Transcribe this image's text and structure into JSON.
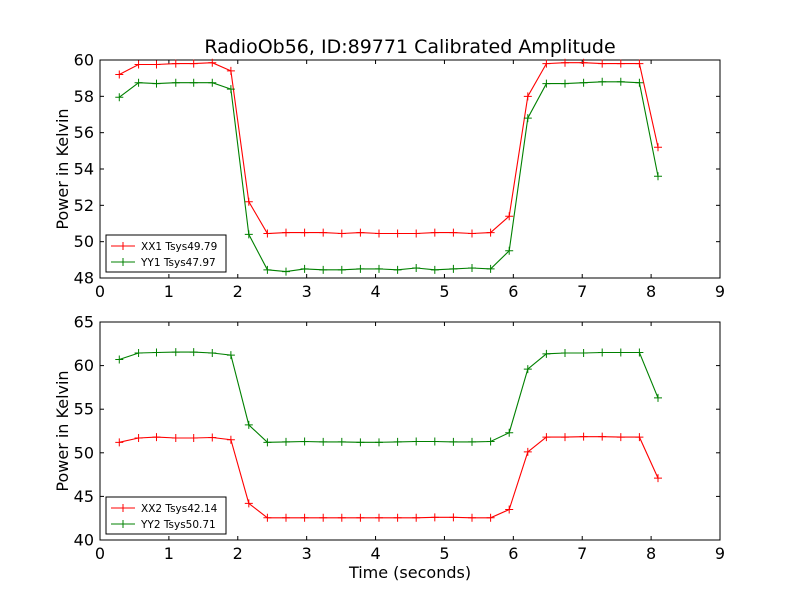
{
  "chart_data": {
    "type": "line",
    "title": "RadioOb56, ID:89771 Calibrated Amplitude",
    "xlabel": "Time (seconds)",
    "panels": [
      {
        "ylabel": "Power in Kelvin",
        "xlim": [
          0,
          9
        ],
        "ylim": [
          48,
          60
        ],
        "xticks": [
          "0",
          "1",
          "2",
          "3",
          "4",
          "5",
          "6",
          "7",
          "8",
          "9"
        ],
        "yticks": [
          "48",
          "50",
          "52",
          "54",
          "56",
          "58",
          "60"
        ],
        "legend_position": "lower-left",
        "series": [
          {
            "name": "XX1 Tsys49.79",
            "color": "#ff0000",
            "marker": "+",
            "x": [
              0.28,
              0.56,
              0.82,
              1.1,
              1.36,
              1.63,
              1.9,
              2.16,
              2.43,
              2.7,
              2.97,
              3.24,
              3.51,
              3.78,
              4.05,
              4.32,
              4.59,
              4.86,
              5.13,
              5.4,
              5.67,
              5.94,
              6.21,
              6.48,
              6.75,
              7.02,
              7.29,
              7.56,
              7.83,
              8.1
            ],
            "y": [
              59.2,
              59.75,
              59.75,
              59.8,
              59.8,
              59.85,
              59.4,
              52.2,
              50.45,
              50.5,
              50.5,
              50.5,
              50.45,
              50.5,
              50.45,
              50.45,
              50.45,
              50.5,
              50.5,
              50.45,
              50.5,
              51.4,
              58.0,
              59.8,
              59.85,
              59.85,
              59.8,
              59.8,
              59.8,
              55.2
            ]
          },
          {
            "name": "YY1 Tsys47.97",
            "color": "#008000",
            "marker": "+",
            "x": [
              0.28,
              0.56,
              0.82,
              1.1,
              1.36,
              1.63,
              1.9,
              2.16,
              2.43,
              2.7,
              2.97,
              3.24,
              3.51,
              3.78,
              4.05,
              4.32,
              4.59,
              4.86,
              5.13,
              5.4,
              5.67,
              5.94,
              6.21,
              6.48,
              6.75,
              7.02,
              7.29,
              7.56,
              7.83,
              8.1
            ],
            "y": [
              57.95,
              58.75,
              58.7,
              58.75,
              58.75,
              58.75,
              58.4,
              50.4,
              48.45,
              48.35,
              48.5,
              48.45,
              48.45,
              48.5,
              48.5,
              48.45,
              48.55,
              48.45,
              48.5,
              48.55,
              48.5,
              49.5,
              56.8,
              58.7,
              58.7,
              58.75,
              58.8,
              58.8,
              58.75,
              53.6
            ]
          }
        ]
      },
      {
        "ylabel": "Power in Kelvin",
        "xlim": [
          0,
          9
        ],
        "ylim": [
          40,
          65
        ],
        "xticks": [
          "0",
          "1",
          "2",
          "3",
          "4",
          "5",
          "6",
          "7",
          "8",
          "9"
        ],
        "yticks": [
          "40",
          "45",
          "50",
          "55",
          "60",
          "65"
        ],
        "legend_position": "lower-left",
        "series": [
          {
            "name": "XX2 Tsys42.14",
            "color": "#ff0000",
            "marker": "+",
            "x": [
              0.28,
              0.56,
              0.82,
              1.1,
              1.36,
              1.63,
              1.9,
              2.16,
              2.43,
              2.7,
              2.97,
              3.24,
              3.51,
              3.78,
              4.05,
              4.32,
              4.59,
              4.86,
              5.13,
              5.4,
              5.67,
              5.94,
              6.21,
              6.48,
              6.75,
              7.02,
              7.29,
              7.56,
              7.83,
              8.1
            ],
            "y": [
              51.2,
              51.7,
              51.8,
              51.7,
              51.7,
              51.75,
              51.5,
              44.2,
              42.55,
              42.55,
              42.55,
              42.55,
              42.55,
              42.55,
              42.55,
              42.55,
              42.55,
              42.6,
              42.6,
              42.55,
              42.55,
              43.5,
              50.1,
              51.8,
              51.8,
              51.85,
              51.85,
              51.8,
              51.8,
              47.1
            ]
          },
          {
            "name": "YY2 Tsys50.71",
            "color": "#008000",
            "marker": "+",
            "x": [
              0.28,
              0.56,
              0.82,
              1.1,
              1.36,
              1.63,
              1.9,
              2.16,
              2.43,
              2.7,
              2.97,
              3.24,
              3.51,
              3.78,
              4.05,
              4.32,
              4.59,
              4.86,
              5.13,
              5.4,
              5.67,
              5.94,
              6.21,
              6.48,
              6.75,
              7.02,
              7.29,
              7.56,
              7.83,
              8.1
            ],
            "y": [
              60.7,
              61.45,
              61.5,
              61.55,
              61.55,
              61.45,
              61.2,
              53.2,
              51.2,
              51.25,
              51.3,
              51.25,
              51.25,
              51.2,
              51.2,
              51.25,
              51.3,
              51.3,
              51.25,
              51.25,
              51.3,
              52.3,
              59.6,
              61.35,
              61.45,
              61.45,
              61.5,
              61.5,
              61.5,
              56.3
            ]
          }
        ]
      }
    ]
  }
}
